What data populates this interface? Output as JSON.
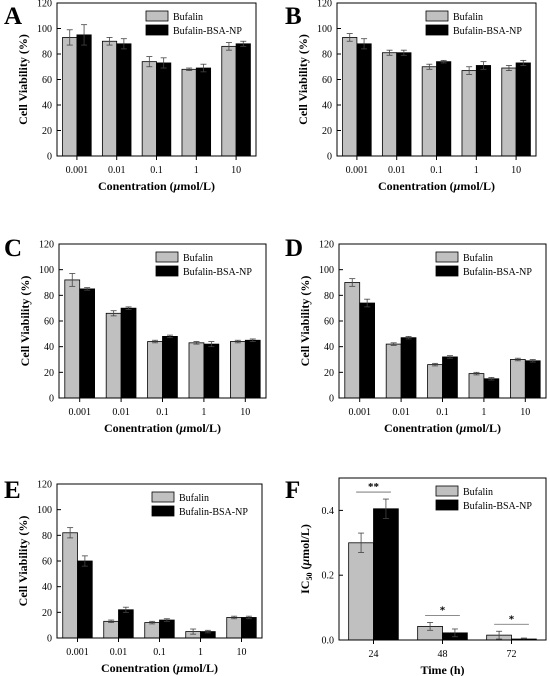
{
  "colors": {
    "series_a": "#c0c0c0",
    "series_b": "#000000",
    "axis": "#000000"
  },
  "chart_data": [
    {
      "panel_label": "A",
      "type": "bar",
      "categories": [
        "0.001",
        "0.01",
        "0.1",
        "1",
        "10"
      ],
      "series": [
        {
          "name": "Bufalin",
          "values": [
            93,
            90,
            74,
            68,
            86
          ],
          "errors": [
            6,
            3,
            4,
            1,
            3
          ]
        },
        {
          "name": "Bufalin-BSA-NP",
          "values": [
            95,
            88,
            73,
            69,
            88
          ],
          "errors": [
            8,
            4,
            4,
            3,
            2
          ]
        }
      ],
      "xlabel_prefix": "Conentration (",
      "xlabel_mu": "μ",
      "xlabel_suffix": "mol/L)",
      "ylabel": "Cell Viability (%)",
      "ylim": [
        0,
        120
      ],
      "yticks": [
        "0",
        "20",
        "40",
        "60",
        "80",
        "100",
        "120"
      ],
      "legend_placement": "top-right"
    },
    {
      "panel_label": "B",
      "type": "bar",
      "categories": [
        "0.001",
        "0.01",
        "0.1",
        "1",
        "10"
      ],
      "series": [
        {
          "name": "Bufalin",
          "values": [
            93,
            81,
            70,
            67,
            69
          ],
          "errors": [
            3,
            2,
            2,
            3,
            2
          ]
        },
        {
          "name": "Bufalin-BSA-NP",
          "values": [
            88,
            81,
            74,
            71,
            73
          ],
          "errors": [
            4,
            2,
            1,
            3,
            2
          ]
        }
      ],
      "xlabel_prefix": "Conentration (",
      "xlabel_mu": "μ",
      "xlabel_suffix": "mol/L)",
      "ylabel": "Cell Viability (%)",
      "ylim": [
        0,
        120
      ],
      "yticks": [
        "0",
        "20",
        "40",
        "60",
        "80",
        "100",
        "120"
      ],
      "legend_placement": "top-right"
    },
    {
      "panel_label": "C",
      "type": "bar",
      "categories": [
        "0.001",
        "0.01",
        "0.1",
        "1",
        "10"
      ],
      "series": [
        {
          "name": "Bufalin",
          "values": [
            92,
            66,
            44,
            43,
            44
          ],
          "errors": [
            5,
            2,
            1,
            1,
            1
          ]
        },
        {
          "name": "Bufalin-BSA-NP",
          "values": [
            85,
            70,
            48,
            42,
            45
          ],
          "errors": [
            1,
            1,
            1,
            2,
            1
          ]
        }
      ],
      "xlabel_prefix": "Conentration (",
      "xlabel_mu": "μ",
      "xlabel_suffix": "mol/L)",
      "ylabel": "Cell Viability (%)",
      "ylim": [
        0,
        120
      ],
      "yticks": [
        "0",
        "20",
        "40",
        "60",
        "80",
        "100",
        "120"
      ],
      "legend_placement": "top-right"
    },
    {
      "panel_label": "D",
      "type": "bar",
      "categories": [
        "0.001",
        "0.01",
        "0.1",
        "1",
        "10"
      ],
      "series": [
        {
          "name": "Bufalin",
          "values": [
            90,
            42,
            26,
            19,
            30
          ],
          "errors": [
            3,
            1,
            1,
            1,
            1
          ]
        },
        {
          "name": "Bufalin-BSA-NP",
          "values": [
            74,
            47,
            32,
            15,
            29
          ],
          "errors": [
            3,
            1,
            1,
            1,
            1
          ]
        }
      ],
      "xlabel_prefix": "Conentration (",
      "xlabel_mu": "μ",
      "xlabel_suffix": "mol/L)",
      "ylabel": "Cell Viability (%)",
      "ylim": [
        0,
        120
      ],
      "yticks": [
        "0",
        "20",
        "40",
        "60",
        "80",
        "100",
        "120"
      ],
      "legend_placement": "top-right"
    },
    {
      "panel_label": "E",
      "type": "bar",
      "categories": [
        "0.001",
        "0.01",
        "0.1",
        "1",
        "10"
      ],
      "series": [
        {
          "name": "Bufalin",
          "values": [
            82,
            13,
            12,
            5,
            16
          ],
          "errors": [
            4,
            1,
            1,
            2,
            1
          ]
        },
        {
          "name": "Bufalin-BSA-NP",
          "values": [
            60,
            22,
            14,
            5,
            16
          ],
          "errors": [
            4,
            2,
            1,
            1,
            1
          ]
        }
      ],
      "xlabel_prefix": "Conentration (",
      "xlabel_mu": "μ",
      "xlabel_suffix": "mol/L)",
      "ylabel": "Cell Viability (%)",
      "ylim": [
        0,
        120
      ],
      "yticks": [
        "0",
        "20",
        "40",
        "60",
        "80",
        "100",
        "120"
      ],
      "legend_placement": "top-right"
    },
    {
      "panel_label": "F",
      "type": "bar",
      "categories": [
        "24",
        "48",
        "72"
      ],
      "series": [
        {
          "name": "Bufalin",
          "values": [
            0.3,
            0.042,
            0.015
          ],
          "errors": [
            0.03,
            0.012,
            0.012
          ]
        },
        {
          "name": "Bufalin-BSA-NP",
          "values": [
            0.405,
            0.022,
            0.003
          ],
          "errors": [
            0.03,
            0.012,
            0.003
          ]
        }
      ],
      "xlabel": "Time (h)",
      "ylabel_prefix": "IC",
      "ylabel_sub": "50",
      "ylabel_mid": " (",
      "ylabel_mu": "μ",
      "ylabel_suffix": "mol/L)",
      "ylim": [
        0,
        0.5
      ],
      "yticks": [
        "0.0",
        "0.2",
        "0.4"
      ],
      "ytick_values": [
        0,
        0.2,
        0.4
      ],
      "significance": [
        "**",
        "*",
        "*"
      ],
      "legend_placement": "top-right"
    }
  ]
}
